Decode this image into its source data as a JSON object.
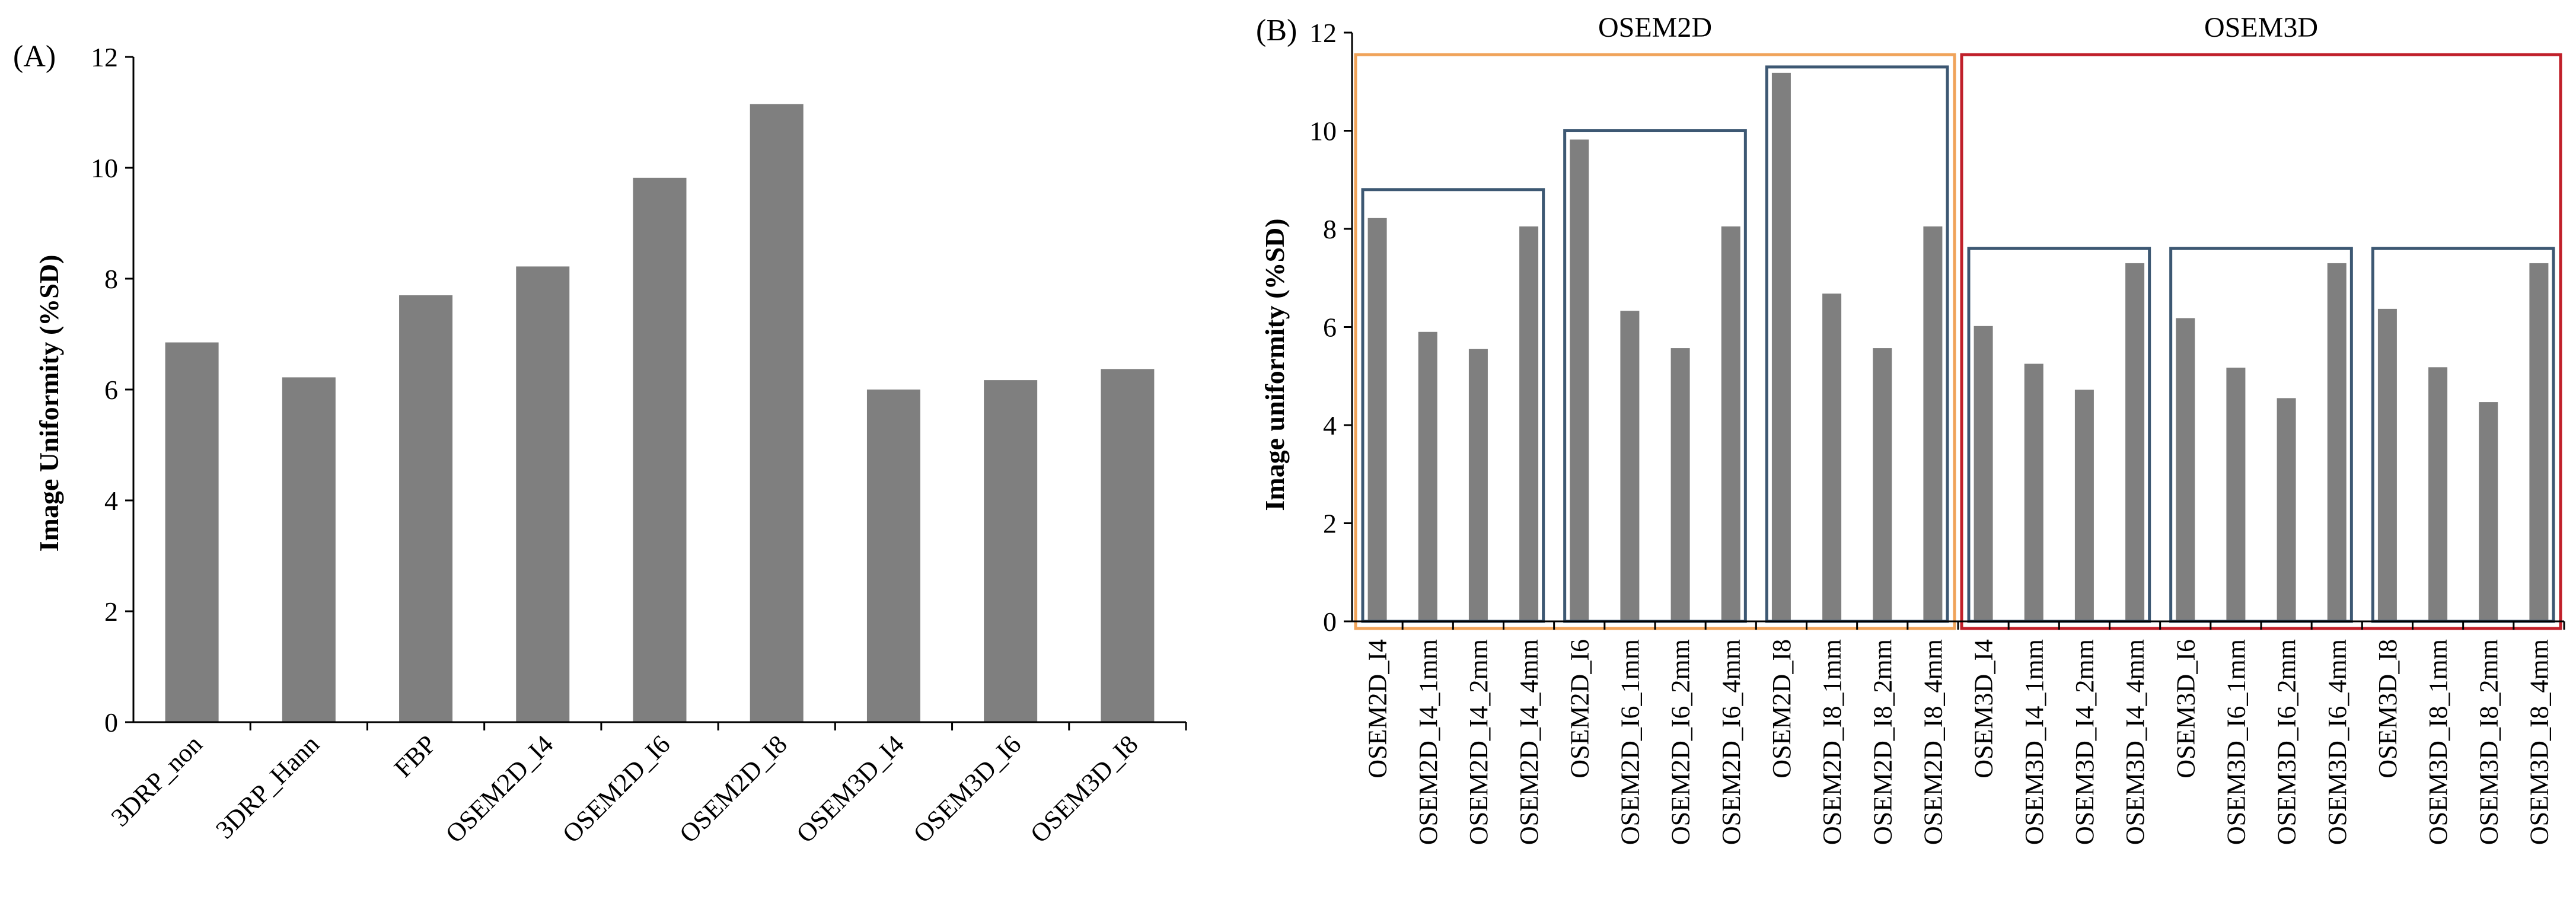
{
  "chart_data": [
    {
      "panel_label": "(A)",
      "type": "bar",
      "title": "",
      "xlabel": "",
      "ylabel": "Image Uniformity (%SD)",
      "ylim": [
        0,
        12
      ],
      "yticks": [
        "0",
        "2",
        "4",
        "6",
        "8",
        "10",
        "12"
      ],
      "categories": [
        "3DRP_non",
        "3DRP_Hann",
        "FBP",
        "OSEM2D_I4",
        "OSEM2D_I6",
        "OSEM2D_I8",
        "OSEM3D_I4",
        "OSEM3D_I6",
        "OSEM3D_I8"
      ],
      "values": [
        6.85,
        6.22,
        7.7,
        8.22,
        9.82,
        11.15,
        6.0,
        6.17,
        6.37
      ],
      "bar_color": "#7f7f7f",
      "grid": false
    },
    {
      "panel_label": "(B)",
      "type": "bar",
      "title": "",
      "xlabel": "",
      "ylabel": "Image uniformity (%SD)",
      "ylim": [
        0,
        12
      ],
      "yticks": [
        "0",
        "2",
        "4",
        "6",
        "8",
        "10",
        "12"
      ],
      "categories": [
        "OSEM2D_I4",
        "OSEM2D_I4_1mm",
        "OSEM2D_I4_2mm",
        "OSEM2D_I4_4mm",
        "OSEM2D_I6",
        "OSEM2D_I6_1mm",
        "OSEM2D_I6_2mm",
        "OSEM2D_I6_4mm",
        "OSEM2D_I8",
        "OSEM2D_I8_1mm",
        "OSEM2D_I8_2mm",
        "OSEM2D_I8_4mm",
        "OSEM3D_I4",
        "OSEM3D_I4_1mm",
        "OSEM3D_I4_2mm",
        "OSEM3D_I4_4mm",
        "OSEM3D_I6",
        "OSEM3D_I6_1mm",
        "OSEM3D_I6_2mm",
        "OSEM3D_I6_4mm",
        "OSEM3D_I8",
        "OSEM3D_I8_1mm",
        "OSEM3D_I8_2mm",
        "OSEM3D_I8_4mm"
      ],
      "values": [
        8.22,
        5.9,
        5.55,
        8.05,
        9.82,
        6.33,
        5.57,
        8.05,
        11.18,
        6.68,
        5.57,
        8.05,
        6.02,
        5.25,
        4.72,
        7.3,
        6.18,
        5.17,
        4.55,
        7.3,
        6.37,
        5.18,
        4.47,
        7.3
      ],
      "bar_color": "#7f7f7f",
      "grid": false,
      "groups": [
        {
          "label": "OSEM2D",
          "from": 0,
          "to": 11,
          "color": "#f0a35a"
        },
        {
          "label": "OSEM3D",
          "from": 12,
          "to": 23,
          "color": "#c0202a"
        }
      ],
      "subgroups": [
        {
          "from": 0,
          "to": 3,
          "level": 8.8
        },
        {
          "from": 4,
          "to": 7,
          "level": 10.0
        },
        {
          "from": 8,
          "to": 11,
          "level": 11.3
        },
        {
          "from": 12,
          "to": 15,
          "level": 7.6
        },
        {
          "from": 16,
          "to": 19,
          "level": 7.6
        },
        {
          "from": 20,
          "to": 23,
          "level": 7.6
        }
      ],
      "subgroup_color": "#3d5873"
    }
  ]
}
